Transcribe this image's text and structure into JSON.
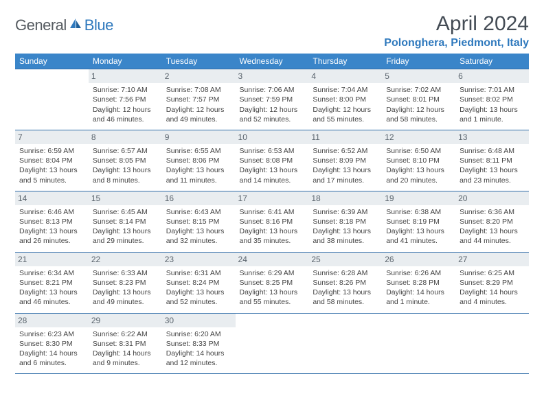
{
  "logo": {
    "part1": "General",
    "part2": "Blue"
  },
  "title": "April 2024",
  "location": "Polonghera, Piedmont, Italy",
  "colors": {
    "header_bg": "#3a85c9",
    "border": "#2f6ca8",
    "daynum_bg": "#e9edf0",
    "brand_blue": "#2f79bd",
    "text": "#444444"
  },
  "weekdays": [
    "Sunday",
    "Monday",
    "Tuesday",
    "Wednesday",
    "Thursday",
    "Friday",
    "Saturday"
  ],
  "weeks": [
    [
      null,
      {
        "n": "1",
        "sr": "7:10 AM",
        "ss": "7:56 PM",
        "dl": "12 hours and 46 minutes."
      },
      {
        "n": "2",
        "sr": "7:08 AM",
        "ss": "7:57 PM",
        "dl": "12 hours and 49 minutes."
      },
      {
        "n": "3",
        "sr": "7:06 AM",
        "ss": "7:59 PM",
        "dl": "12 hours and 52 minutes."
      },
      {
        "n": "4",
        "sr": "7:04 AM",
        "ss": "8:00 PM",
        "dl": "12 hours and 55 minutes."
      },
      {
        "n": "5",
        "sr": "7:02 AM",
        "ss": "8:01 PM",
        "dl": "12 hours and 58 minutes."
      },
      {
        "n": "6",
        "sr": "7:01 AM",
        "ss": "8:02 PM",
        "dl": "13 hours and 1 minute."
      }
    ],
    [
      {
        "n": "7",
        "sr": "6:59 AM",
        "ss": "8:04 PM",
        "dl": "13 hours and 5 minutes."
      },
      {
        "n": "8",
        "sr": "6:57 AM",
        "ss": "8:05 PM",
        "dl": "13 hours and 8 minutes."
      },
      {
        "n": "9",
        "sr": "6:55 AM",
        "ss": "8:06 PM",
        "dl": "13 hours and 11 minutes."
      },
      {
        "n": "10",
        "sr": "6:53 AM",
        "ss": "8:08 PM",
        "dl": "13 hours and 14 minutes."
      },
      {
        "n": "11",
        "sr": "6:52 AM",
        "ss": "8:09 PM",
        "dl": "13 hours and 17 minutes."
      },
      {
        "n": "12",
        "sr": "6:50 AM",
        "ss": "8:10 PM",
        "dl": "13 hours and 20 minutes."
      },
      {
        "n": "13",
        "sr": "6:48 AM",
        "ss": "8:11 PM",
        "dl": "13 hours and 23 minutes."
      }
    ],
    [
      {
        "n": "14",
        "sr": "6:46 AM",
        "ss": "8:13 PM",
        "dl": "13 hours and 26 minutes."
      },
      {
        "n": "15",
        "sr": "6:45 AM",
        "ss": "8:14 PM",
        "dl": "13 hours and 29 minutes."
      },
      {
        "n": "16",
        "sr": "6:43 AM",
        "ss": "8:15 PM",
        "dl": "13 hours and 32 minutes."
      },
      {
        "n": "17",
        "sr": "6:41 AM",
        "ss": "8:16 PM",
        "dl": "13 hours and 35 minutes."
      },
      {
        "n": "18",
        "sr": "6:39 AM",
        "ss": "8:18 PM",
        "dl": "13 hours and 38 minutes."
      },
      {
        "n": "19",
        "sr": "6:38 AM",
        "ss": "8:19 PM",
        "dl": "13 hours and 41 minutes."
      },
      {
        "n": "20",
        "sr": "6:36 AM",
        "ss": "8:20 PM",
        "dl": "13 hours and 44 minutes."
      }
    ],
    [
      {
        "n": "21",
        "sr": "6:34 AM",
        "ss": "8:21 PM",
        "dl": "13 hours and 46 minutes."
      },
      {
        "n": "22",
        "sr": "6:33 AM",
        "ss": "8:23 PM",
        "dl": "13 hours and 49 minutes."
      },
      {
        "n": "23",
        "sr": "6:31 AM",
        "ss": "8:24 PM",
        "dl": "13 hours and 52 minutes."
      },
      {
        "n": "24",
        "sr": "6:29 AM",
        "ss": "8:25 PM",
        "dl": "13 hours and 55 minutes."
      },
      {
        "n": "25",
        "sr": "6:28 AM",
        "ss": "8:26 PM",
        "dl": "13 hours and 58 minutes."
      },
      {
        "n": "26",
        "sr": "6:26 AM",
        "ss": "8:28 PM",
        "dl": "14 hours and 1 minute."
      },
      {
        "n": "27",
        "sr": "6:25 AM",
        "ss": "8:29 PM",
        "dl": "14 hours and 4 minutes."
      }
    ],
    [
      {
        "n": "28",
        "sr": "6:23 AM",
        "ss": "8:30 PM",
        "dl": "14 hours and 6 minutes."
      },
      {
        "n": "29",
        "sr": "6:22 AM",
        "ss": "8:31 PM",
        "dl": "14 hours and 9 minutes."
      },
      {
        "n": "30",
        "sr": "6:20 AM",
        "ss": "8:33 PM",
        "dl": "14 hours and 12 minutes."
      },
      null,
      null,
      null,
      null
    ]
  ],
  "labels": {
    "sunrise": "Sunrise: ",
    "sunset": "Sunset: ",
    "daylight": "Daylight: "
  }
}
